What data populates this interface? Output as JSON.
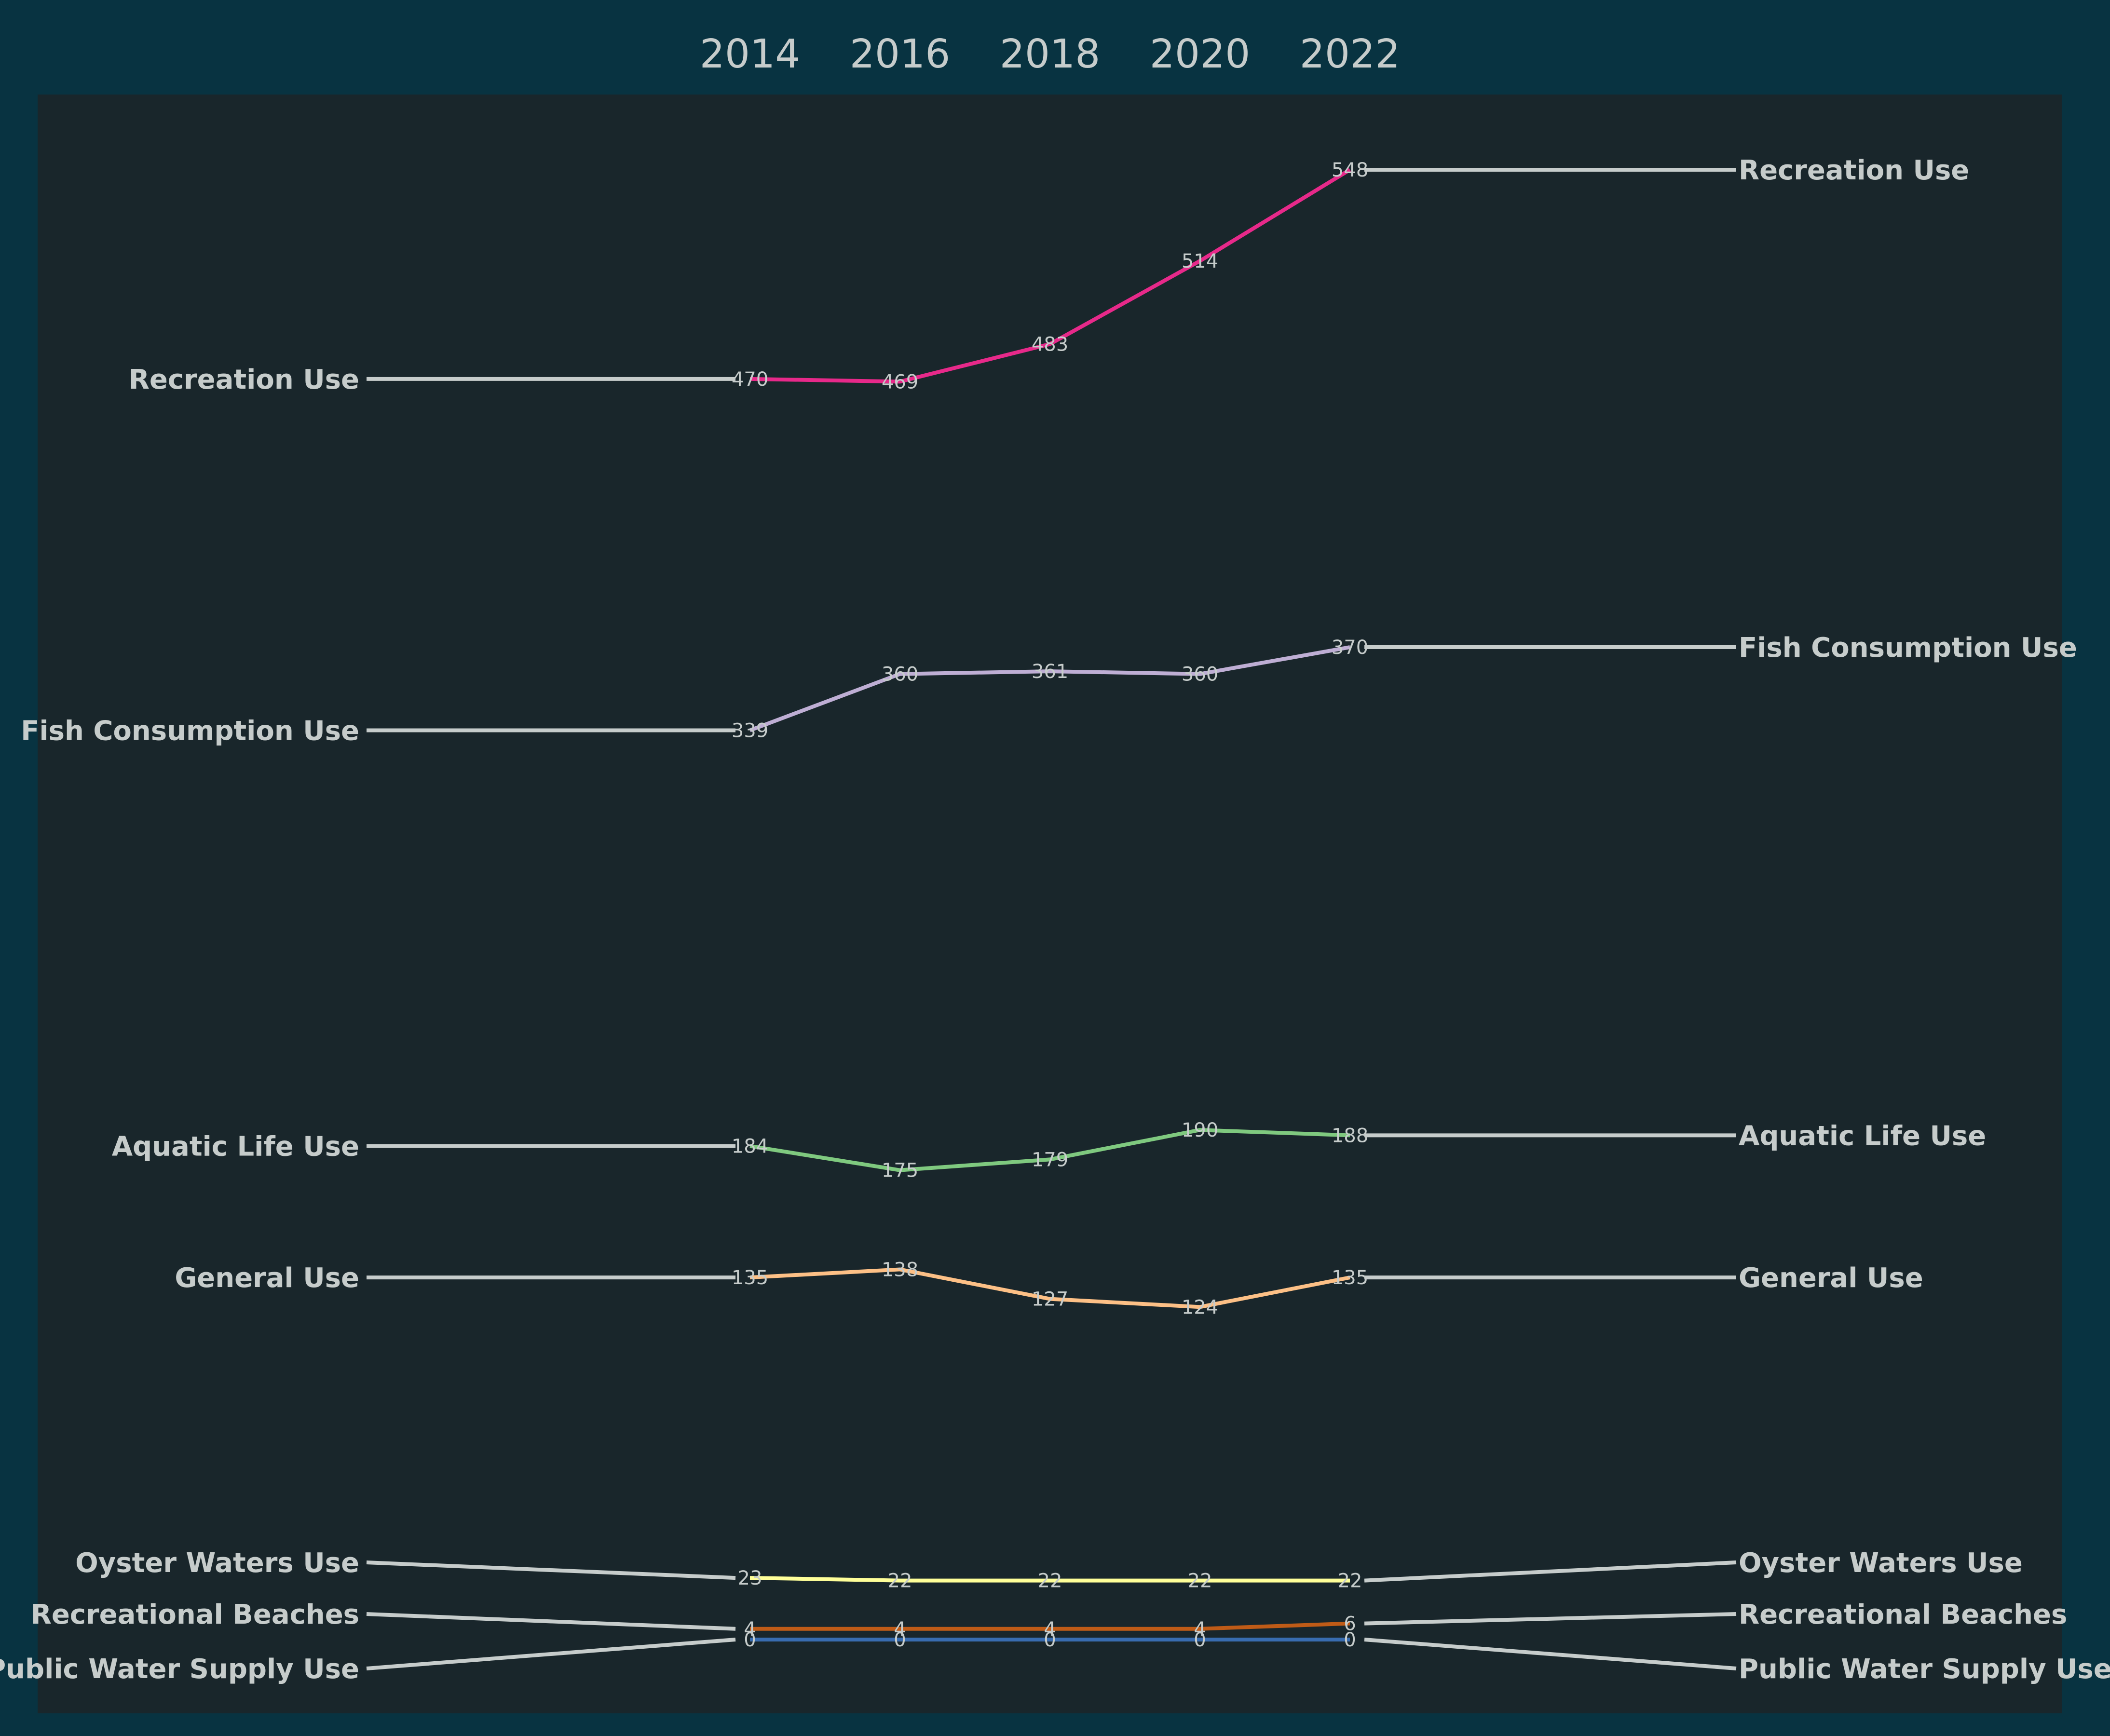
{
  "chart_data": {
    "type": "line",
    "subtype": "slope-bump",
    "x": [
      "2014",
      "2016",
      "2018",
      "2020",
      "2022"
    ],
    "series": [
      {
        "name": "Recreation Use",
        "values": [
          470,
          469,
          483,
          514,
          548
        ],
        "color": "#e7298a"
      },
      {
        "name": "Fish Consumption Use",
        "values": [
          339,
          360,
          361,
          360,
          370
        ],
        "color": "#beaed4"
      },
      {
        "name": "Aquatic Life Use",
        "values": [
          184,
          175,
          179,
          190,
          188
        ],
        "color": "#7fc97f"
      },
      {
        "name": "General Use",
        "values": [
          135,
          138,
          127,
          124,
          135
        ],
        "color": "#fdc086"
      },
      {
        "name": "Oyster Waters Use",
        "values": [
          23,
          22,
          22,
          22,
          22
        ],
        "color": "#ffff99"
      },
      {
        "name": "Recreational Beaches",
        "values": [
          4,
          4,
          4,
          4,
          6
        ],
        "color": "#bf5b17"
      },
      {
        "name": "Public Water Supply Use",
        "values": [
          0,
          0,
          0,
          0,
          0
        ],
        "color": "#386cb0"
      }
    ],
    "ylim": [
      -15,
      565
    ],
    "grid": false,
    "legend": "none",
    "colors": {
      "page_background": "#083341",
      "plot_background": "#19262b",
      "text": "#c6cccb",
      "connector": "#c6cccb"
    }
  }
}
